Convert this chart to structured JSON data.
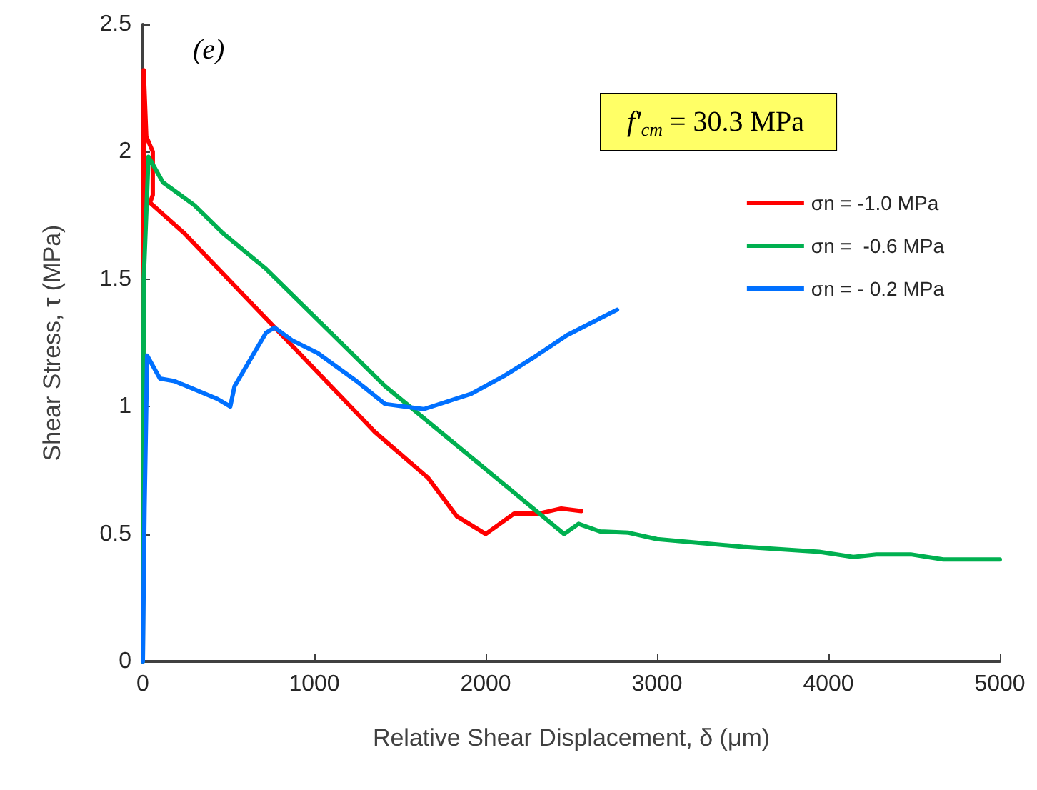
{
  "chart_data": {
    "type": "line",
    "xlabel": "Relative Shear Displacement, δ (μm)",
    "ylabel": "Shear Stress, τ (MPa)",
    "xlim": [
      0,
      5000
    ],
    "xticks": [
      0,
      1000,
      2000,
      3000,
      4000,
      5000
    ],
    "ylim": [
      0,
      2.5
    ],
    "yticks": [
      0,
      0.5,
      1,
      1.5,
      2,
      2.5
    ],
    "grid": false,
    "legend": "top right",
    "marker": "none",
    "line_style": "solid",
    "annotations": [
      "(e)",
      "f'$_{cm}$ = 30.3 MPa"
    ],
    "series": [
      {
        "name": "σn = -1.0 MPa",
        "color": "#ff0000",
        "x": [
          0,
          5,
          20,
          58,
          58,
          42,
          242,
          1354,
          1664,
          1831,
          2000,
          2166,
          2308,
          2441,
          2559
        ],
        "values": [
          0,
          2.32,
          2.06,
          2.0,
          1.83,
          1.8,
          1.68,
          0.9,
          0.72,
          0.57,
          0.5,
          0.58,
          0.58,
          0.6,
          0.59
        ]
      },
      {
        "name": "σn =  -0.6 MPa",
        "color": "#00b050",
        "x": [
          0,
          5,
          33,
          117,
          301,
          468,
          719,
          1413,
          2458,
          2542,
          2667,
          2834,
          3000,
          3500,
          3945,
          4145,
          4280,
          4480,
          4670,
          5000
        ],
        "values": [
          0,
          1.5,
          1.98,
          1.88,
          1.79,
          1.68,
          1.54,
          1.08,
          0.5,
          0.54,
          0.51,
          0.505,
          0.48,
          0.45,
          0.43,
          0.41,
          0.42,
          0.42,
          0.4,
          0.4
        ]
      },
      {
        "name": "σn = - 0.2 MPa",
        "color": "#0070ff",
        "x": [
          0,
          10,
          25,
          100,
          184,
          435,
          510,
          535,
          719,
          769,
          870,
          1020,
          1246,
          1413,
          1639,
          1915,
          2107,
          2274,
          2475,
          2767
        ],
        "values": [
          0,
          0.6,
          1.2,
          1.11,
          1.1,
          1.03,
          1.0,
          1.08,
          1.29,
          1.31,
          1.26,
          1.21,
          1.1,
          1.01,
          0.99,
          1.05,
          1.12,
          1.19,
          1.28,
          1.38
        ]
      }
    ]
  }
}
